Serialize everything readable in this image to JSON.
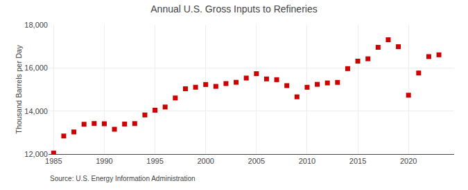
{
  "chart_data": {
    "type": "scatter",
    "title": "Annual U.S. Gross Inputs to Refineries",
    "ylabel": "Thousand Barrels per Day",
    "source": "Source: U.S. Energy Information Administration",
    "x": [
      1985,
      1986,
      1987,
      1988,
      1989,
      1990,
      1991,
      1992,
      1993,
      1994,
      1995,
      1996,
      1997,
      1998,
      1999,
      2000,
      2001,
      2002,
      2003,
      2004,
      2005,
      2006,
      2007,
      2008,
      2009,
      2010,
      2011,
      2012,
      2013,
      2014,
      2015,
      2016,
      2017,
      2018,
      2019,
      2020,
      2021,
      2022,
      2023
    ],
    "values": [
      12046,
      12839,
      13028,
      13385,
      13420,
      13409,
      13153,
      13394,
      13417,
      13817,
      14037,
      14185,
      14606,
      15033,
      15104,
      15230,
      15143,
      15274,
      15333,
      15530,
      15733,
      15489,
      15455,
      15179,
      14658,
      15102,
      15238,
      15303,
      15329,
      15969,
      16316,
      16425,
      16957,
      17310,
      16987,
      14734,
      15765,
      16527,
      16610
    ],
    "color": "#cc0000",
    "marker": "square",
    "xlim": [
      1984.5,
      2024.5
    ],
    "xticks": [
      1985,
      1990,
      1995,
      2000,
      2005,
      2010,
      2015,
      2020
    ],
    "ylim": [
      12000,
      18000
    ],
    "yticks": [
      {
        "value": 12000,
        "label": "12,000"
      },
      {
        "value": 14000,
        "label": "14,000"
      },
      {
        "value": 16000,
        "label": "16,000"
      },
      {
        "value": 18000,
        "label": "18,000"
      }
    ],
    "grid": true
  }
}
